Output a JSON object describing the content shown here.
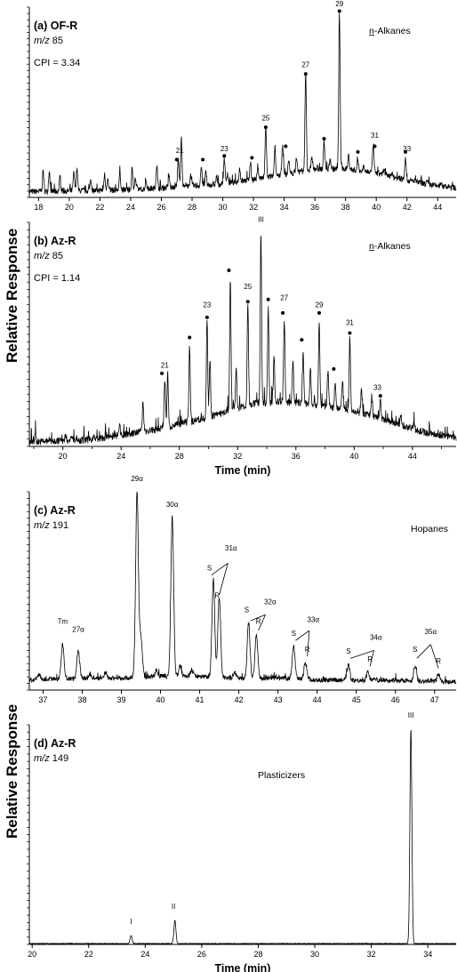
{
  "figure": {
    "ylabel_top": "Relative Response",
    "ylabel_bottom": "Relative Response"
  },
  "chart_data": [
    {
      "type": "line",
      "panel_label": "(a) OF-R",
      "mz_prefix": "m/z",
      "mz_value": "85",
      "cpi": "CPI = 3.34",
      "compound_class": "n-Alkanes",
      "xlabel": "",
      "xlim": [
        17.4,
        45.2
      ],
      "ylim": [
        0,
        100
      ],
      "x_ticks": [
        "18",
        "20",
        "22",
        "24",
        "26",
        "28",
        "30",
        "32",
        "34",
        "36",
        "38",
        "40",
        "42",
        "44"
      ],
      "x_tick_values": [
        18,
        20,
        22,
        24,
        26,
        28,
        30,
        32,
        34,
        36,
        38,
        40,
        42,
        44
      ],
      "baseline": [
        [
          17.4,
          3
        ],
        [
          24,
          4
        ],
        [
          30,
          7
        ],
        [
          34,
          12
        ],
        [
          36,
          15
        ],
        [
          38,
          15
        ],
        [
          40,
          13
        ],
        [
          42,
          9
        ],
        [
          44,
          6
        ],
        [
          45.2,
          5
        ]
      ],
      "peaks": [
        {
          "x": 18.3,
          "y": 14
        },
        {
          "x": 18.7,
          "y": 13
        },
        {
          "x": 19.4,
          "y": 11
        },
        {
          "x": 20.3,
          "y": 13
        },
        {
          "x": 20.5,
          "y": 15
        },
        {
          "x": 21.4,
          "y": 10
        },
        {
          "x": 22.3,
          "y": 12
        },
        {
          "x": 22.5,
          "y": 10
        },
        {
          "x": 23.3,
          "y": 13
        },
        {
          "x": 24.1,
          "y": 15
        },
        {
          "x": 24.3,
          "y": 10
        },
        {
          "x": 25.0,
          "y": 9
        },
        {
          "x": 25.7,
          "y": 17
        },
        {
          "x": 26.5,
          "y": 12
        },
        {
          "x": 27.1,
          "y": 20
        },
        {
          "x": 27.3,
          "y": 31
        },
        {
          "x": 27.9,
          "y": 12
        },
        {
          "x": 28.6,
          "y": 16
        },
        {
          "x": 28.9,
          "y": 13
        },
        {
          "x": 29.6,
          "y": 11
        },
        {
          "x": 30.1,
          "y": 21
        },
        {
          "x": 30.3,
          "y": 13
        },
        {
          "x": 31.1,
          "y": 15
        },
        {
          "x": 31.8,
          "y": 18
        },
        {
          "x": 32.3,
          "y": 15
        },
        {
          "x": 32.8,
          "y": 37
        },
        {
          "x": 33.4,
          "y": 25
        },
        {
          "x": 33.9,
          "y": 28
        },
        {
          "x": 34.3,
          "y": 20
        },
        {
          "x": 34.8,
          "y": 21
        },
        {
          "x": 35.4,
          "y": 65
        },
        {
          "x": 35.8,
          "y": 22
        },
        {
          "x": 36.6,
          "y": 30
        },
        {
          "x": 37.0,
          "y": 20
        },
        {
          "x": 37.6,
          "y": 97
        },
        {
          "x": 38.2,
          "y": 22
        },
        {
          "x": 38.8,
          "y": 19
        },
        {
          "x": 39.2,
          "y": 17
        },
        {
          "x": 39.8,
          "y": 28
        },
        {
          "x": 40.5,
          "y": 15
        },
        {
          "x": 41.0,
          "y": 13
        },
        {
          "x": 41.9,
          "y": 21
        },
        {
          "x": 42.5,
          "y": 9
        },
        {
          "x": 43.3,
          "y": 8
        },
        {
          "x": 44.2,
          "y": 7
        }
      ],
      "labels": [
        {
          "text": "21",
          "x": 27.2,
          "y": 22
        },
        {
          "text": "23",
          "x": 30.1,
          "y": 23
        },
        {
          "text": "25",
          "x": 32.8,
          "y": 39
        },
        {
          "text": "27",
          "x": 35.4,
          "y": 67
        },
        {
          "text": "29",
          "x": 37.6,
          "y": 99
        },
        {
          "text": "31",
          "x": 39.9,
          "y": 30
        },
        {
          "text": "33",
          "x": 42.0,
          "y": 23
        }
      ],
      "dots": [
        {
          "x": 27.0,
          "y": 18
        },
        {
          "x": 28.7,
          "y": 18
        },
        {
          "x": 30.1,
          "y": 20
        },
        {
          "x": 31.9,
          "y": 19
        },
        {
          "x": 32.8,
          "y": 35
        },
        {
          "x": 34.1,
          "y": 25
        },
        {
          "x": 35.4,
          "y": 63
        },
        {
          "x": 36.6,
          "y": 29
        },
        {
          "x": 37.6,
          "y": 96
        },
        {
          "x": 38.8,
          "y": 22
        },
        {
          "x": 39.9,
          "y": 25
        },
        {
          "x": 41.9,
          "y": 22
        }
      ]
    },
    {
      "type": "line",
      "panel_label": "(b) Az-R",
      "mz_prefix": "m/z",
      "mz_value": "85",
      "cpi": "CPI = 1.14",
      "compound_class": "n-Alkanes",
      "xlabel": "Time (min)",
      "xlim": [
        17.7,
        47.0
      ],
      "ylim": [
        0,
        100
      ],
      "x_ticks": [
        "20",
        "24",
        "28",
        "32",
        "36",
        "40",
        "44"
      ],
      "x_tick_values": [
        20,
        24,
        28,
        32,
        36,
        40,
        44
      ],
      "minor_ticks": [
        18,
        22,
        26,
        30,
        34,
        38,
        42,
        46
      ],
      "baseline": [
        [
          17.7,
          2
        ],
        [
          22,
          3
        ],
        [
          26,
          7
        ],
        [
          30,
          13
        ],
        [
          33,
          19
        ],
        [
          35,
          20
        ],
        [
          37,
          19
        ],
        [
          39,
          17
        ],
        [
          41,
          14
        ],
        [
          43,
          10
        ],
        [
          45,
          6
        ],
        [
          47,
          4
        ]
      ],
      "peaks": [
        {
          "x": 18.1,
          "y": 5
        },
        {
          "x": 20.2,
          "y": 5
        },
        {
          "x": 20.6,
          "y": 5
        },
        {
          "x": 21.0,
          "y": 4
        },
        {
          "x": 22.1,
          "y": 5
        },
        {
          "x": 23.9,
          "y": 9
        },
        {
          "x": 25.5,
          "y": 21
        },
        {
          "x": 27.0,
          "y": 30
        },
        {
          "x": 27.2,
          "y": 32
        },
        {
          "x": 28.7,
          "y": 45
        },
        {
          "x": 29.9,
          "y": 58
        },
        {
          "x": 30.1,
          "y": 38
        },
        {
          "x": 31.5,
          "y": 74
        },
        {
          "x": 31.9,
          "y": 35
        },
        {
          "x": 32.7,
          "y": 64
        },
        {
          "x": 33.6,
          "y": 95
        },
        {
          "x": 34.1,
          "y": 62
        },
        {
          "x": 34.5,
          "y": 40
        },
        {
          "x": 35.2,
          "y": 56
        },
        {
          "x": 35.8,
          "y": 38
        },
        {
          "x": 36.5,
          "y": 42
        },
        {
          "x": 37.0,
          "y": 35
        },
        {
          "x": 37.6,
          "y": 56
        },
        {
          "x": 38.2,
          "y": 34
        },
        {
          "x": 38.7,
          "y": 29
        },
        {
          "x": 39.2,
          "y": 30
        },
        {
          "x": 39.7,
          "y": 48
        },
        {
          "x": 40.5,
          "y": 25
        },
        {
          "x": 41.2,
          "y": 22
        },
        {
          "x": 41.8,
          "y": 20
        },
        {
          "x": 43.2,
          "y": 13
        },
        {
          "x": 44.1,
          "y": 10
        }
      ],
      "labels": [
        {
          "text": "21",
          "x": 27.0,
          "y": 34
        },
        {
          "text": "23",
          "x": 29.9,
          "y": 61
        },
        {
          "text": "25",
          "x": 32.7,
          "y": 69
        },
        {
          "text": "III",
          "x": 33.6,
          "y": 99
        },
        {
          "text": "27",
          "x": 35.2,
          "y": 64
        },
        {
          "text": "29",
          "x": 37.6,
          "y": 61
        },
        {
          "text": "31",
          "x": 39.7,
          "y": 53
        },
        {
          "text": "33",
          "x": 41.6,
          "y": 24
        }
      ],
      "dots": [
        {
          "x": 26.8,
          "y": 31
        },
        {
          "x": 28.7,
          "y": 47
        },
        {
          "x": 29.9,
          "y": 56
        },
        {
          "x": 31.4,
          "y": 77
        },
        {
          "x": 32.7,
          "y": 63
        },
        {
          "x": 34.1,
          "y": 64
        },
        {
          "x": 35.1,
          "y": 58
        },
        {
          "x": 36.4,
          "y": 46
        },
        {
          "x": 37.6,
          "y": 58
        },
        {
          "x": 38.6,
          "y": 33
        },
        {
          "x": 39.7,
          "y": 49
        },
        {
          "x": 41.8,
          "y": 21
        }
      ]
    },
    {
      "type": "line",
      "panel_label": "(c) Az-R",
      "mz_prefix": "m/z",
      "mz_value": "191",
      "compound_class": "Hopanes",
      "xlabel": "",
      "xlim": [
        36.65,
        47.55
      ],
      "ylim": [
        0,
        100
      ],
      "x_ticks": [
        "37",
        "38",
        "39",
        "40",
        "41",
        "42",
        "43",
        "44",
        "45",
        "46",
        "47"
      ],
      "x_tick_values": [
        37,
        38,
        39,
        40,
        41,
        42,
        43,
        44,
        45,
        46,
        47
      ],
      "baseline": [
        [
          36.65,
          5
        ],
        [
          38,
          6
        ],
        [
          39,
          6
        ],
        [
          40,
          7
        ],
        [
          41,
          7
        ],
        [
          42,
          6
        ],
        [
          43,
          6
        ],
        [
          44,
          5
        ],
        [
          45,
          5
        ],
        [
          46,
          5
        ],
        [
          47.55,
          4
        ]
      ],
      "peaks": [
        {
          "x": 36.9,
          "y": 8
        },
        {
          "x": 37.5,
          "y": 23
        },
        {
          "x": 37.9,
          "y": 20
        },
        {
          "x": 38.2,
          "y": 8
        },
        {
          "x": 38.6,
          "y": 9
        },
        {
          "x": 39.4,
          "y": 100
        },
        {
          "x": 39.5,
          "y": 27
        },
        {
          "x": 39.9,
          "y": 10
        },
        {
          "x": 40.3,
          "y": 88
        },
        {
          "x": 40.5,
          "y": 12
        },
        {
          "x": 40.8,
          "y": 10
        },
        {
          "x": 41.35,
          "y": 56
        },
        {
          "x": 41.5,
          "y": 47
        },
        {
          "x": 41.9,
          "y": 9
        },
        {
          "x": 42.25,
          "y": 34
        },
        {
          "x": 42.45,
          "y": 28
        },
        {
          "x": 43.4,
          "y": 22
        },
        {
          "x": 43.7,
          "y": 14
        },
        {
          "x": 44.8,
          "y": 13
        },
        {
          "x": 45.3,
          "y": 9
        },
        {
          "x": 46.5,
          "y": 12
        },
        {
          "x": 47.1,
          "y": 8
        }
      ],
      "labels": [
        {
          "text": "Tm",
          "x": 37.5,
          "y": 32
        },
        {
          "text": "27α",
          "x": 37.9,
          "y": 28
        },
        {
          "text": "29α",
          "x": 39.4,
          "y": 104
        },
        {
          "text": "30α",
          "x": 40.3,
          "y": 91
        },
        {
          "text": "31α",
          "x": 41.8,
          "y": 69
        },
        {
          "text": "S",
          "x": 41.25,
          "y": 59
        },
        {
          "text": "R",
          "x": 41.45,
          "y": 45
        },
        {
          "text": "32α",
          "x": 42.8,
          "y": 42
        },
        {
          "text": "S",
          "x": 42.2,
          "y": 38
        },
        {
          "text": "R",
          "x": 42.5,
          "y": 32
        },
        {
          "text": "33α",
          "x": 43.9,
          "y": 33
        },
        {
          "text": "S",
          "x": 43.4,
          "y": 26
        },
        {
          "text": "R",
          "x": 43.75,
          "y": 18
        },
        {
          "text": "34α",
          "x": 45.5,
          "y": 24
        },
        {
          "text": "S",
          "x": 44.8,
          "y": 17
        },
        {
          "text": "R",
          "x": 45.35,
          "y": 13
        },
        {
          "text": "35α",
          "x": 46.9,
          "y": 27
        },
        {
          "text": "S",
          "x": 46.5,
          "y": 18
        },
        {
          "text": "R",
          "x": 47.1,
          "y": 12
        }
      ],
      "leaders": [
        {
          "from": [
            41.72,
            64
          ],
          "to": [
            41.3,
            58
          ]
        },
        {
          "from": [
            41.72,
            64
          ],
          "to": [
            41.5,
            48
          ]
        },
        {
          "from": [
            42.68,
            38
          ],
          "to": [
            42.3,
            35
          ]
        },
        {
          "from": [
            42.68,
            38
          ],
          "to": [
            42.5,
            30
          ]
        },
        {
          "from": [
            43.8,
            30
          ],
          "to": [
            43.45,
            25
          ]
        },
        {
          "from": [
            43.8,
            30
          ],
          "to": [
            43.75,
            17
          ]
        },
        {
          "from": [
            45.45,
            20
          ],
          "to": [
            44.85,
            16
          ]
        },
        {
          "from": [
            45.45,
            20
          ],
          "to": [
            45.35,
            12
          ]
        },
        {
          "from": [
            46.9,
            23
          ],
          "to": [
            46.55,
            16
          ]
        },
        {
          "from": [
            46.9,
            23
          ],
          "to": [
            47.1,
            11
          ]
        }
      ]
    },
    {
      "type": "line",
      "panel_label": "(d) Az-R",
      "mz_prefix": "m/z",
      "mz_value": "149",
      "compound_class": "Plasticizers",
      "xlabel": "Time (min)",
      "xlim": [
        19.9,
        35.0
      ],
      "ylim": [
        0,
        100
      ],
      "x_ticks": [
        "20",
        "22",
        "24",
        "26",
        "28",
        "30",
        "32",
        "34"
      ],
      "x_tick_values": [
        20,
        22,
        24,
        26,
        28,
        30,
        32,
        34
      ],
      "baseline": [
        [
          19.9,
          0.4
        ],
        [
          35.0,
          0.4
        ]
      ],
      "peaks": [
        {
          "x": 23.5,
          "y": 4
        },
        {
          "x": 25.05,
          "y": 11
        },
        {
          "x": 33.4,
          "y": 98
        }
      ],
      "labels": [
        {
          "text": "I",
          "x": 23.5,
          "y": 8
        },
        {
          "text": "II",
          "x": 25.0,
          "y": 15
        },
        {
          "text": "III",
          "x": 33.4,
          "y": 102
        }
      ]
    }
  ]
}
